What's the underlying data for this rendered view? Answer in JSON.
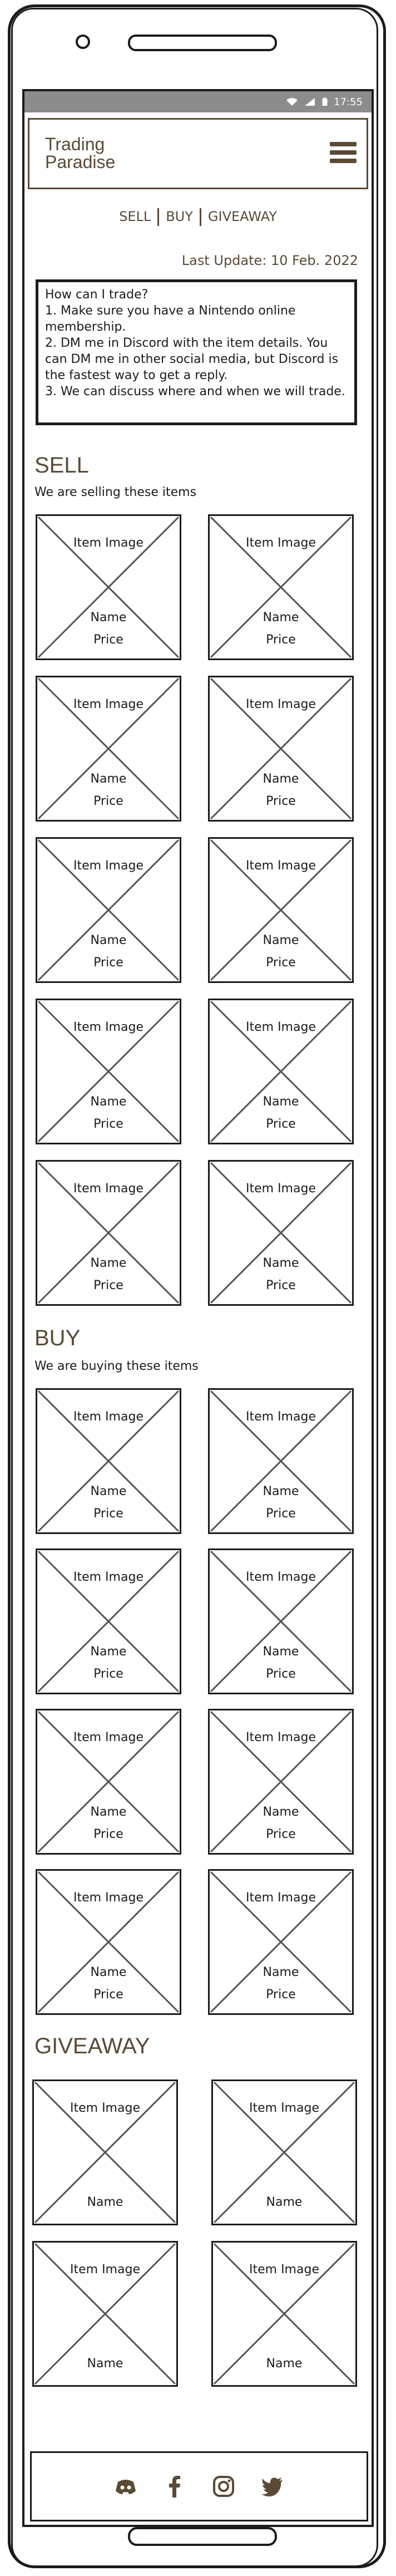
{
  "status": {
    "time": "17:55"
  },
  "header": {
    "logo_line1": "Trading",
    "logo_line2": "Paradise"
  },
  "nav": {
    "sell": "SELL",
    "buy": "BUY",
    "giveaway": "GIVEAWAY"
  },
  "last_update": "Last Update: 10 Feb. 2022",
  "howto": {
    "title": "How can I trade?",
    "step1": "1. Make sure you have a Nintendo online membership.",
    "step2": "2. DM me in Discord with the item details. You can DM me in other social media, but Discord is the fastest way to get a reply.",
    "step3": "3. We can discuss where and when we will trade."
  },
  "sell": {
    "title": "SELL",
    "subtitle": "We are selling these items",
    "items": [
      {
        "image": "Item Image",
        "name": "Name",
        "price": "Price"
      },
      {
        "image": "Item Image",
        "name": "Name",
        "price": "Price"
      },
      {
        "image": "Item Image",
        "name": "Name",
        "price": "Price"
      },
      {
        "image": "Item Image",
        "name": "Name",
        "price": "Price"
      },
      {
        "image": "Item Image",
        "name": "Name",
        "price": "Price"
      },
      {
        "image": "Item Image",
        "name": "Name",
        "price": "Price"
      },
      {
        "image": "Item Image",
        "name": "Name",
        "price": "Price"
      },
      {
        "image": "Item Image",
        "name": "Name",
        "price": "Price"
      },
      {
        "image": "Item Image",
        "name": "Name",
        "price": "Price"
      },
      {
        "image": "Item Image",
        "name": "Name",
        "price": "Price"
      }
    ]
  },
  "buy": {
    "title": "BUY",
    "subtitle": "We are buying these items",
    "items": [
      {
        "image": "Item Image",
        "name": "Name",
        "price": "Price"
      },
      {
        "image": "Item Image",
        "name": "Name",
        "price": "Price"
      },
      {
        "image": "Item Image",
        "name": "Name",
        "price": "Price"
      },
      {
        "image": "Item Image",
        "name": "Name",
        "price": "Price"
      },
      {
        "image": "Item Image",
        "name": "Name",
        "price": "Price"
      },
      {
        "image": "Item Image",
        "name": "Name",
        "price": "Price"
      },
      {
        "image": "Item Image",
        "name": "Name",
        "price": "Price"
      },
      {
        "image": "Item Image",
        "name": "Name",
        "price": "Price"
      }
    ]
  },
  "giveaway": {
    "title": "GIVEAWAY",
    "items": [
      {
        "image": "Item Image",
        "name": "Name"
      },
      {
        "image": "Item Image",
        "name": "Name"
      },
      {
        "image": "Item Image",
        "name": "Name"
      },
      {
        "image": "Item Image",
        "name": "Name"
      }
    ]
  },
  "footer": {
    "icons": [
      "discord-icon",
      "facebook-icon",
      "instagram-icon",
      "twitter-icon"
    ]
  },
  "colors": {
    "brand": "#5a4a36",
    "statusbar": "#8c8c8c",
    "ink": "#1b1b1b"
  }
}
